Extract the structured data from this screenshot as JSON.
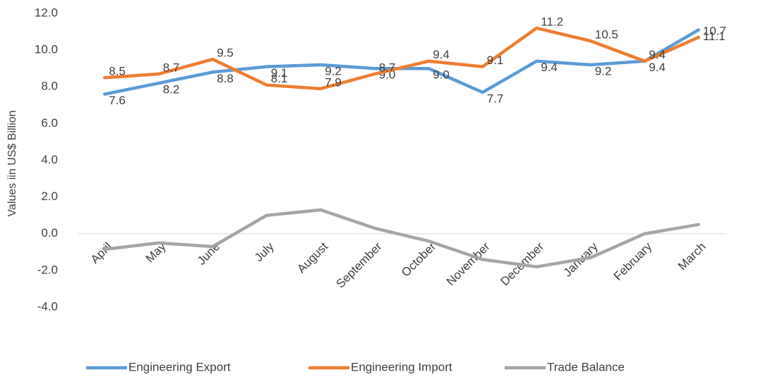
{
  "chart_data": {
    "type": "line",
    "y_label": "Values iin US$ Billion",
    "categories": [
      "April",
      "May",
      "June",
      "July",
      "August",
      "September",
      "October",
      "November",
      "December",
      "January",
      "February",
      "March"
    ],
    "series": [
      {
        "name": "Engineering Export",
        "color": "#5b9bd5",
        "values": [
          7.6,
          8.2,
          8.8,
          9.1,
          9.2,
          9.0,
          9.0,
          7.7,
          9.4,
          9.2,
          9.4,
          11.1
        ],
        "value_labels": [
          "7.6",
          "8.2",
          "8.8",
          "9.1",
          "9.2",
          "9.0",
          "9.0",
          "7.7",
          "9.4",
          "9.2",
          "9.4",
          "11.1"
        ]
      },
      {
        "name": "Engineering Import",
        "color": "#ed7d31",
        "values": [
          8.5,
          8.7,
          9.5,
          8.1,
          7.9,
          8.7,
          9.4,
          9.1,
          11.2,
          10.5,
          9.4,
          10.7
        ],
        "value_labels": [
          "8.5",
          "8.7",
          "9.5",
          "8.1",
          "7.9",
          "8.7",
          "9.4",
          "9.1",
          "11.2",
          "10.5",
          "9.4",
          "10.7"
        ]
      },
      {
        "name": "Trade Balance",
        "color": "#a5a5a5",
        "values": [
          -0.85,
          -0.5,
          -0.7,
          1.0,
          1.3,
          0.3,
          -0.4,
          -1.4,
          -1.8,
          -1.3,
          0.0,
          0.5
        ]
      }
    ],
    "ylim": [
      -4,
      12
    ],
    "yticks": [
      {
        "value": -4,
        "label": "-4.0"
      },
      {
        "value": -2,
        "label": "-2.0"
      },
      {
        "value": 0,
        "label": "0.0"
      },
      {
        "value": 2,
        "label": "2.0"
      },
      {
        "value": 4,
        "label": "4.0"
      },
      {
        "value": 6,
        "label": "6.0"
      },
      {
        "value": 8,
        "label": "8.0"
      },
      {
        "value": 10,
        "label": "10.0"
      },
      {
        "value": 12,
        "label": "12.0"
      }
    ],
    "grid": false,
    "legend": "bottom"
  }
}
